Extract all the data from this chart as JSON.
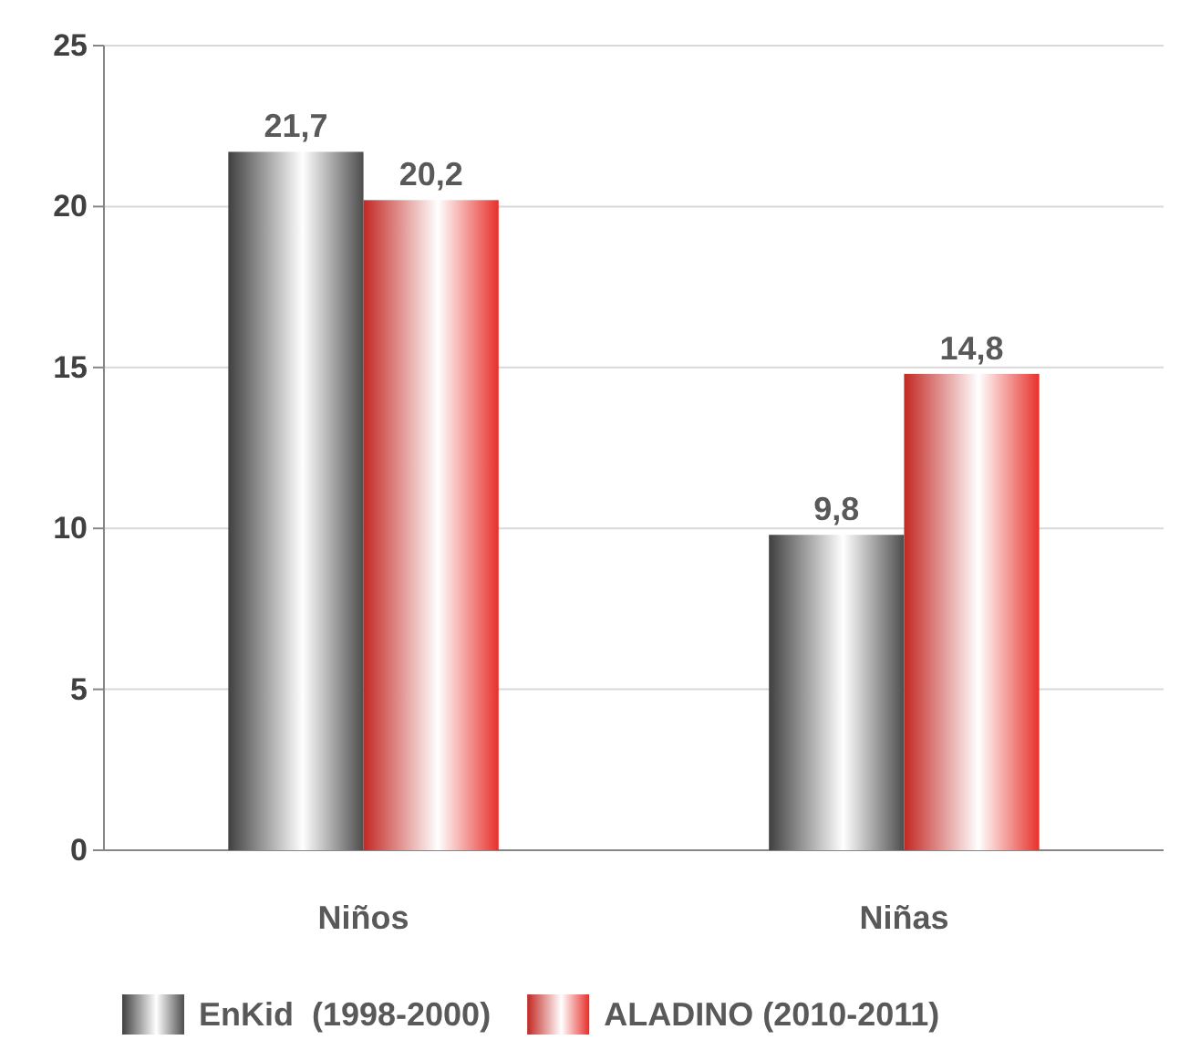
{
  "chart_data": {
    "type": "bar",
    "categories": [
      "Niños",
      "Niñas"
    ],
    "series": [
      {
        "name": "EnKid  (1998-2000)",
        "color": "#4d4d4d",
        "values": [
          21.7,
          9.8
        ],
        "value_labels": [
          "21,7",
          "9,8"
        ]
      },
      {
        "name": "ALADINO (2010-2011)",
        "color": "#e8302a",
        "values": [
          20.2,
          14.8
        ],
        "value_labels": [
          "20,2",
          "14,8"
        ]
      }
    ],
    "ylim": [
      0,
      25
    ],
    "yticks": [
      0,
      5,
      10,
      15,
      20,
      25
    ],
    "grid": "y",
    "legend": "bottom"
  }
}
